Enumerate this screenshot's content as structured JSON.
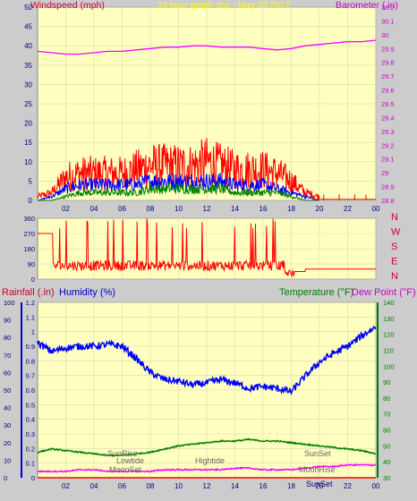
{
  "header": {
    "left_label": "Windspeed (mph)",
    "center_label": "24 hour graph day - May 03 2017",
    "right_label": "Barometer (.in)"
  },
  "bottom_header": {
    "rainfall_label": "Rainfall (.in)",
    "humidity_label": "Humidity (%)",
    "temperature_label": "Temperature (°F)",
    "dewpoint_label": "Dew Point (°F)"
  },
  "annotations": {
    "sunrise": "SunRise",
    "sunset": "SunSet",
    "lowtide": "Lowtide",
    "hightide": "Hightide",
    "moonset": "MoonSet",
    "moonrise": "MoonRise",
    "sunset_bottom": "SunSet"
  },
  "colors": {
    "plot_bg": "#ffffc0",
    "frame_bg": "#cccccc",
    "wind": "#ff0000",
    "gust_blue": "#0000ff",
    "wind_green": "#008000",
    "barometer": "#ff00ff",
    "humidity": "#0000ff",
    "temperature": "#008000",
    "dewpoint": "#ff00ff",
    "label_yellow": "#ffff00",
    "axis_text": "#000080"
  },
  "chart_data": [
    {
      "type": "line",
      "name": "wind-barometer",
      "xticks": [
        "02",
        "04",
        "06",
        "08",
        "10",
        "12",
        "14",
        "16",
        "18",
        "20",
        "22",
        "00"
      ],
      "left_axis": {
        "label": "Windspeed (mph)",
        "ylim": [
          0,
          50
        ],
        "ticks": [
          0,
          5,
          10,
          15,
          20,
          25,
          30,
          35,
          40,
          45,
          50
        ]
      },
      "right_axis": {
        "label": "Barometer (.in)",
        "ylim": [
          28.8,
          30.2
        ],
        "ticks": [
          "28.8",
          "28.9",
          "29",
          "29.1",
          "29.2",
          "29.3",
          "29.4",
          "29.5",
          "29.6",
          "29.7",
          "29.8",
          "29.9",
          "30",
          "30.1",
          "30.2"
        ]
      },
      "series": [
        {
          "name": "Barometer (.in)",
          "axis": "right",
          "x": [
            0,
            1,
            2,
            3,
            4,
            5,
            6,
            7,
            8,
            9,
            10,
            11,
            12,
            13,
            14,
            15,
            16,
            17,
            18,
            19,
            20,
            21,
            22,
            23,
            24
          ],
          "y": [
            29.88,
            29.87,
            29.86,
            29.86,
            29.87,
            29.88,
            29.88,
            29.89,
            29.9,
            29.91,
            29.91,
            29.92,
            29.92,
            29.91,
            29.91,
            29.91,
            29.9,
            29.89,
            29.9,
            29.92,
            29.93,
            29.94,
            29.95,
            29.95,
            29.96
          ]
        },
        {
          "name": "Wind gust",
          "axis": "left",
          "hours": [
            0,
            1,
            2,
            3,
            4,
            5,
            6,
            7,
            8,
            9,
            10,
            11,
            12,
            13,
            14,
            15,
            16,
            17,
            18,
            19,
            20,
            21,
            22,
            23,
            24
          ],
          "avg": [
            1,
            2,
            6,
            7,
            7,
            7,
            7,
            8,
            9,
            9,
            9,
            9,
            10,
            9,
            8,
            8,
            8,
            7,
            5,
            2,
            1,
            1,
            0,
            1,
            1
          ]
        },
        {
          "name": "Wind average",
          "axis": "left",
          "hours": [
            0,
            1,
            2,
            3,
            4,
            5,
            6,
            7,
            8,
            9,
            10,
            11,
            12,
            13,
            14,
            15,
            16,
            17,
            18,
            19,
            20,
            21,
            22,
            23,
            24
          ],
          "avg": [
            0,
            1,
            3,
            4,
            4,
            4,
            4,
            4,
            5,
            5,
            5,
            5,
            5,
            5,
            4,
            4,
            4,
            3,
            2,
            1,
            0,
            0,
            0,
            0,
            0
          ]
        },
        {
          "name": "Wind speed",
          "axis": "left",
          "hours": [
            0,
            1,
            2,
            3,
            4,
            5,
            6,
            7,
            8,
            9,
            10,
            11,
            12,
            13,
            14,
            15,
            16,
            17,
            18,
            19,
            20,
            21,
            22,
            23,
            24
          ],
          "avg": [
            0,
            0,
            1,
            2,
            2,
            2,
            2,
            2,
            3,
            3,
            3,
            3,
            3,
            3,
            2,
            2,
            2,
            2,
            1,
            0,
            0,
            0,
            0,
            0,
            0
          ]
        }
      ]
    },
    {
      "type": "line",
      "name": "wind-direction",
      "xticks": [
        "02",
        "04",
        "06",
        "08",
        "10",
        "12",
        "14",
        "16",
        "18",
        "20",
        "22",
        "00"
      ],
      "left_axis": {
        "ylim": [
          0,
          360
        ],
        "ticks": [
          0,
          90,
          180,
          270,
          360
        ]
      },
      "right_labels": [
        "N",
        "W",
        "S",
        "E",
        "N"
      ],
      "series": [
        {
          "name": "Wind direction",
          "x": [
            0,
            1,
            1.2,
            2,
            3,
            4,
            5,
            6,
            7,
            8,
            9,
            10,
            11,
            12,
            13,
            14,
            15,
            16,
            17,
            17.5,
            18,
            19,
            20,
            21,
            22,
            23,
            24
          ],
          "y": [
            270,
            270,
            60,
            60,
            70,
            60,
            90,
            70,
            80,
            100,
            90,
            60,
            80,
            70,
            90,
            60,
            80,
            70,
            60,
            20,
            50,
            50,
            60,
            60,
            60,
            60,
            60
          ]
        }
      ]
    },
    {
      "type": "line",
      "name": "rain-humidity-temperature",
      "xticks": [
        "02",
        "04",
        "06",
        "08",
        "10",
        "12",
        "14",
        "16",
        "18",
        "20",
        "22",
        "00"
      ],
      "left_axis": {
        "label": "Rainfall (.in)",
        "ylim": [
          0,
          1.2
        ],
        "ticks": [
          "0",
          "0.1",
          "0.2",
          "0.3",
          "0.4",
          "0.5",
          "0.6",
          "0.7",
          "0.8",
          "0.9",
          "1",
          "1.1",
          "1.2"
        ]
      },
      "left_axis_2": {
        "label": "Humidity (%)",
        "ylim": [
          0,
          100
        ],
        "ticks": [
          0,
          10,
          20,
          30,
          40,
          50,
          60,
          70,
          80,
          90,
          100
        ]
      },
      "right_axis": {
        "label": "Temperature (°F)",
        "ylim": [
          30,
          140
        ],
        "ticks": [
          30,
          40,
          50,
          60,
          70,
          80,
          90,
          100,
          110,
          120,
          130,
          140
        ]
      },
      "series": [
        {
          "name": "Humidity (%)",
          "axis": "left2",
          "x": [
            0,
            1,
            2,
            3,
            4,
            5,
            6,
            7,
            8,
            9,
            10,
            11,
            12,
            13,
            14,
            15,
            16,
            17,
            18,
            19,
            20,
            21,
            22,
            23,
            24
          ],
          "y": [
            77,
            72,
            74,
            75,
            75,
            76,
            75,
            68,
            60,
            56,
            55,
            53,
            54,
            56,
            54,
            51,
            52,
            51,
            49,
            58,
            66,
            71,
            75,
            81,
            86
          ]
        },
        {
          "name": "Temperature (°F)",
          "axis": "right",
          "x": [
            0,
            1,
            2,
            3,
            4,
            5,
            6,
            7,
            8,
            9,
            10,
            11,
            12,
            13,
            14,
            15,
            16,
            17,
            18,
            19,
            20,
            21,
            22,
            23,
            24
          ],
          "y": [
            46,
            48,
            47,
            46,
            45,
            44,
            44,
            45,
            46,
            48,
            50,
            51,
            52,
            53,
            53,
            54,
            53,
            53,
            52,
            51,
            50,
            49,
            48,
            47,
            45
          ]
        },
        {
          "name": "Dew Point (°F)",
          "axis": "right",
          "x": [
            0,
            1,
            2,
            3,
            4,
            5,
            6,
            7,
            8,
            9,
            10,
            11,
            12,
            13,
            14,
            15,
            16,
            17,
            18,
            19,
            20,
            21,
            22,
            23,
            24
          ],
          "y": [
            34,
            34,
            34,
            35,
            35,
            34,
            34,
            34,
            34,
            35,
            35,
            35,
            35,
            35,
            36,
            36,
            35,
            35,
            35,
            36,
            37,
            37,
            38,
            38,
            38
          ]
        },
        {
          "name": "Rainfall (.in)",
          "axis": "left",
          "x": [
            0,
            24
          ],
          "y": [
            0,
            0
          ]
        }
      ]
    }
  ]
}
